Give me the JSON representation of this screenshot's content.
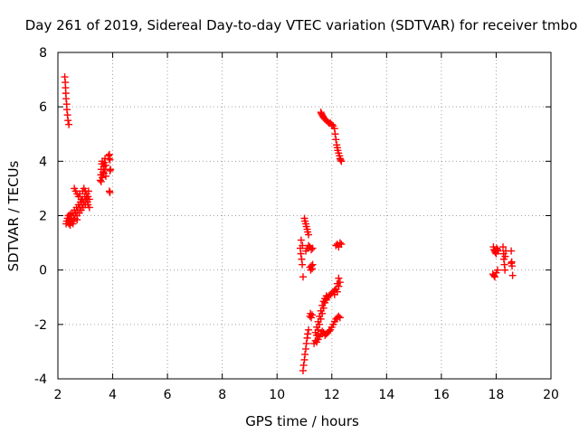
{
  "chart_data": {
    "type": "scatter",
    "title": "Day 261 of 2019, Sidereal Day-to-day VTEC variation (SDTVAR) for receiver tmbo",
    "xlabel": "GPS time / hours",
    "ylabel": "SDTVAR / TECUs",
    "xlim": [
      2,
      20
    ],
    "ylim": [
      -4,
      8
    ],
    "xticks": [
      2,
      4,
      6,
      8,
      10,
      12,
      14,
      16,
      18,
      20
    ],
    "yticks": [
      -4,
      -2,
      0,
      2,
      4,
      6,
      8
    ],
    "grid": true,
    "marker": "plus",
    "color": "#ff0000",
    "series": [
      {
        "points": [
          [
            2.25,
            7.1
          ],
          [
            2.27,
            6.9
          ],
          [
            2.28,
            6.7
          ],
          [
            2.29,
            6.5
          ],
          [
            2.3,
            6.3
          ],
          [
            2.32,
            6.1
          ],
          [
            2.33,
            5.9
          ],
          [
            2.35,
            5.7
          ],
          [
            2.37,
            5.5
          ],
          [
            2.4,
            5.35
          ],
          [
            2.3,
            1.7
          ],
          [
            2.32,
            1.8
          ],
          [
            2.35,
            1.9
          ],
          [
            2.38,
            2.0
          ],
          [
            2.4,
            1.7
          ],
          [
            2.42,
            1.85
          ],
          [
            2.45,
            2.05
          ],
          [
            2.48,
            1.75
          ],
          [
            2.5,
            1.9
          ],
          [
            2.52,
            2.1
          ],
          [
            2.55,
            1.8
          ],
          [
            2.58,
            2.0
          ],
          [
            2.6,
            2.2
          ],
          [
            2.62,
            1.9
          ],
          [
            2.65,
            2.1
          ],
          [
            2.68,
            2.3
          ],
          [
            2.7,
            2.0
          ],
          [
            2.72,
            2.2
          ],
          [
            2.75,
            2.4
          ],
          [
            2.78,
            2.1
          ],
          [
            2.8,
            2.3
          ],
          [
            2.82,
            2.5
          ],
          [
            2.85,
            2.2
          ],
          [
            2.88,
            2.4
          ],
          [
            2.9,
            2.6
          ],
          [
            2.92,
            2.3
          ],
          [
            2.95,
            2.5
          ],
          [
            2.98,
            2.7
          ],
          [
            3.0,
            2.4
          ],
          [
            3.02,
            2.6
          ],
          [
            3.05,
            2.8
          ],
          [
            3.08,
            2.5
          ],
          [
            3.1,
            2.7
          ],
          [
            3.12,
            2.9
          ],
          [
            3.15,
            2.6
          ],
          [
            2.6,
            3.0
          ],
          [
            2.65,
            2.9
          ],
          [
            2.7,
            2.8
          ],
          [
            2.75,
            2.7
          ],
          [
            2.8,
            2.8
          ],
          [
            2.85,
            2.6
          ],
          [
            2.9,
            2.9
          ],
          [
            2.95,
            3.0
          ],
          [
            3.0,
            2.9
          ],
          [
            3.05,
            2.6
          ],
          [
            3.1,
            2.4
          ],
          [
            3.15,
            2.3
          ],
          [
            2.45,
            1.65
          ],
          [
            2.55,
            1.7
          ],
          [
            2.7,
            1.85
          ],
          [
            3.55,
            3.3
          ],
          [
            3.57,
            3.5
          ],
          [
            3.58,
            3.7
          ],
          [
            3.6,
            3.9
          ],
          [
            3.62,
            4.0
          ],
          [
            3.65,
            3.6
          ],
          [
            3.67,
            3.8
          ],
          [
            3.7,
            3.95
          ],
          [
            3.72,
            4.1
          ],
          [
            3.75,
            3.45
          ],
          [
            3.58,
            3.25
          ],
          [
            3.62,
            3.4
          ],
          [
            3.68,
            3.55
          ],
          [
            3.72,
            3.7
          ],
          [
            3.75,
            3.85
          ],
          [
            3.85,
            4.2
          ],
          [
            3.87,
            4.1
          ],
          [
            3.88,
            4.25
          ],
          [
            3.9,
            4.05
          ],
          [
            3.92,
            3.7
          ],
          [
            3.9,
            3.65
          ],
          [
            3.88,
            2.9
          ],
          [
            3.9,
            2.85
          ],
          [
            10.85,
            0.8
          ],
          [
            10.87,
            0.6
          ],
          [
            10.88,
            1.1
          ],
          [
            10.9,
            0.4
          ],
          [
            10.92,
            0.2
          ],
          [
            10.93,
            0.9
          ],
          [
            10.95,
            -0.25
          ],
          [
            11.0,
            1.9
          ],
          [
            11.02,
            1.8
          ],
          [
            11.05,
            1.7
          ],
          [
            11.07,
            1.6
          ],
          [
            11.1,
            1.5
          ],
          [
            11.12,
            1.4
          ],
          [
            11.15,
            1.3
          ],
          [
            11.05,
            0.7
          ],
          [
            11.1,
            0.8
          ],
          [
            11.15,
            0.9
          ],
          [
            11.2,
            0.85
          ],
          [
            11.25,
            0.75
          ],
          [
            11.3,
            0.8
          ],
          [
            11.2,
            0.1
          ],
          [
            11.23,
            0.0
          ],
          [
            11.25,
            0.15
          ],
          [
            11.28,
            0.05
          ],
          [
            11.3,
            0.2
          ],
          [
            10.95,
            -3.7
          ],
          [
            10.97,
            -3.5
          ],
          [
            11.0,
            -3.3
          ],
          [
            11.02,
            -3.1
          ],
          [
            11.05,
            -2.9
          ],
          [
            11.07,
            -2.7
          ],
          [
            11.1,
            -2.5
          ],
          [
            11.12,
            -2.35
          ],
          [
            11.15,
            -2.2
          ],
          [
            11.2,
            -1.7
          ],
          [
            11.22,
            -1.6
          ],
          [
            11.25,
            -1.75
          ],
          [
            11.28,
            -1.65
          ],
          [
            11.35,
            -2.7
          ],
          [
            11.4,
            -2.6
          ],
          [
            11.45,
            -2.4
          ],
          [
            11.5,
            -2.2
          ],
          [
            11.55,
            -2.0
          ],
          [
            11.6,
            -1.8
          ],
          [
            11.65,
            -1.6
          ],
          [
            11.7,
            -1.4
          ],
          [
            11.75,
            -1.2
          ],
          [
            11.8,
            -1.1
          ],
          [
            11.85,
            -1.0
          ],
          [
            11.9,
            -0.95
          ],
          [
            11.95,
            -0.9
          ],
          [
            12.0,
            -0.85
          ],
          [
            12.05,
            -0.8
          ],
          [
            12.1,
            -0.75
          ],
          [
            12.15,
            -0.7
          ],
          [
            11.4,
            -2.3
          ],
          [
            11.45,
            -2.1
          ],
          [
            11.5,
            -1.9
          ],
          [
            11.55,
            -1.7
          ],
          [
            11.6,
            -1.5
          ],
          [
            11.65,
            -1.3
          ],
          [
            11.7,
            -1.15
          ],
          [
            11.75,
            -1.05
          ],
          [
            11.8,
            -0.95
          ],
          [
            11.45,
            -2.65
          ],
          [
            11.5,
            -2.55
          ],
          [
            11.55,
            -2.45
          ],
          [
            11.6,
            -2.35
          ],
          [
            11.65,
            -2.25
          ],
          [
            11.7,
            -2.3
          ],
          [
            11.75,
            -2.4
          ],
          [
            11.8,
            -2.35
          ],
          [
            11.85,
            -2.3
          ],
          [
            11.9,
            -2.25
          ],
          [
            11.95,
            -2.2
          ],
          [
            12.0,
            -2.1
          ],
          [
            12.05,
            -2.0
          ],
          [
            12.1,
            -1.9
          ],
          [
            12.15,
            -1.8
          ],
          [
            12.2,
            -1.75
          ],
          [
            12.25,
            -1.7
          ],
          [
            12.3,
            -1.75
          ],
          [
            12.1,
            -0.9
          ],
          [
            12.15,
            -0.7
          ],
          [
            12.2,
            -0.5
          ],
          [
            12.25,
            -0.3
          ],
          [
            12.3,
            -0.45
          ],
          [
            12.25,
            -0.6
          ],
          [
            12.2,
            -0.8
          ],
          [
            12.15,
            0.9
          ],
          [
            12.2,
            0.95
          ],
          [
            12.25,
            0.85
          ],
          [
            12.3,
            1.0
          ],
          [
            12.35,
            0.95
          ],
          [
            11.6,
            5.8
          ],
          [
            11.62,
            5.75
          ],
          [
            11.65,
            5.7
          ],
          [
            11.68,
            5.65
          ],
          [
            11.7,
            5.6
          ],
          [
            11.75,
            5.55
          ],
          [
            11.8,
            5.5
          ],
          [
            11.85,
            5.45
          ],
          [
            11.9,
            5.4
          ],
          [
            11.95,
            5.4
          ],
          [
            12.0,
            5.35
          ],
          [
            12.05,
            5.3
          ],
          [
            12.1,
            5.2
          ],
          [
            12.12,
            5.0
          ],
          [
            12.15,
            4.8
          ],
          [
            12.18,
            4.6
          ],
          [
            12.2,
            4.5
          ],
          [
            12.22,
            4.4
          ],
          [
            12.25,
            4.3
          ],
          [
            12.28,
            4.2
          ],
          [
            12.3,
            4.1
          ],
          [
            12.32,
            4.05
          ],
          [
            12.35,
            4.0
          ],
          [
            17.9,
            0.85
          ],
          [
            17.92,
            0.75
          ],
          [
            17.95,
            0.7
          ],
          [
            17.97,
            0.65
          ],
          [
            18.0,
            0.6
          ],
          [
            18.02,
            0.8
          ],
          [
            18.05,
            0.75
          ],
          [
            18.07,
            0.7
          ],
          [
            17.88,
            -0.15
          ],
          [
            17.92,
            -0.2
          ],
          [
            17.95,
            -0.25
          ],
          [
            18.0,
            -0.1
          ],
          [
            18.05,
            0.0
          ],
          [
            18.25,
            0.85
          ],
          [
            18.27,
            0.6
          ],
          [
            18.28,
            0.4
          ],
          [
            18.3,
            0.2
          ],
          [
            18.32,
            0.0
          ],
          [
            18.35,
            0.7
          ],
          [
            18.33,
            0.5
          ],
          [
            18.55,
            0.7
          ],
          [
            18.57,
            0.3
          ],
          [
            18.58,
            0.15
          ],
          [
            18.6,
            -0.2
          ],
          [
            18.55,
            0.25
          ]
        ]
      }
    ]
  }
}
